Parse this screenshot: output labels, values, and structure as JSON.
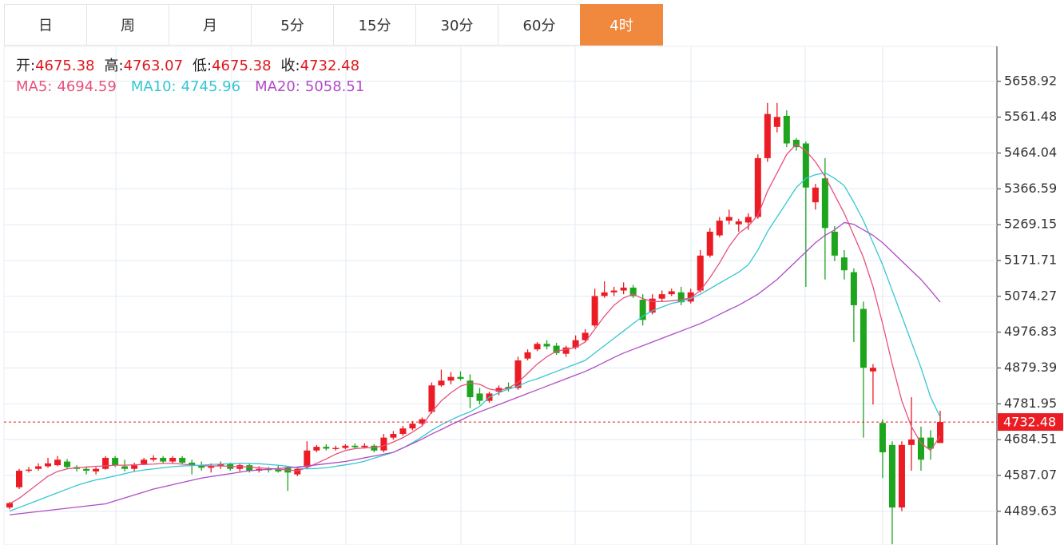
{
  "tabs": {
    "items": [
      "日",
      "周",
      "月",
      "5分",
      "15分",
      "30分",
      "60分",
      "4时"
    ],
    "active": 7
  },
  "chart_data": {
    "type": "candlestick",
    "info_labels": [
      "开:",
      "高:",
      "低:",
      "收:"
    ],
    "up_color": "#ec1c24",
    "down_color": "#1ea51e",
    "value_color": "#e0161e",
    "ylim": [
      4398,
      5754
    ],
    "yticks": [
      5658.92,
      5561.48,
      5464.04,
      5366.59,
      5269.15,
      5171.71,
      5074.27,
      4976.83,
      4879.39,
      4781.95,
      4684.51,
      4587.07,
      4489.63
    ],
    "open": [
      4500,
      4555,
      4600,
      4605,
      4612,
      4615,
      4625,
      4610,
      4605,
      4598,
      4605,
      4635,
      4612,
      4605,
      4618,
      4630,
      4635,
      4625,
      4635,
      4622,
      4615,
      4608,
      4612,
      4618,
      4605,
      4615,
      4600,
      4605,
      4603,
      4610,
      4590,
      4610,
      4655,
      4665,
      4660,
      4662,
      4668,
      4664,
      4668,
      4655,
      4690,
      4700,
      4715,
      4728,
      4760,
      4832,
      4845,
      4855,
      4845,
      4810,
      4790,
      4815,
      4828,
      4825,
      4905,
      4930,
      4945,
      4940,
      4918,
      4935,
      4955,
      4995,
      5075,
      5085,
      5090,
      5098,
      5065,
      5030,
      5068,
      5080,
      5085,
      5060,
      5090,
      5185,
      5240,
      5280,
      5270,
      5275,
      5290,
      5450,
      5535,
      5565,
      5500,
      5490,
      5330,
      5395,
      5250,
      5180,
      5140,
      5040,
      4870,
      4730,
      4670,
      4500,
      4670,
      4690,
      4690,
      4675.38
    ],
    "high": [
      4515,
      4605,
      4610,
      4620,
      4635,
      4640,
      4632,
      4615,
      4612,
      4610,
      4640,
      4640,
      4630,
      4622,
      4635,
      4642,
      4640,
      4640,
      4640,
      4630,
      4625,
      4620,
      4625,
      4622,
      4620,
      4620,
      4612,
      4610,
      4615,
      4612,
      4608,
      4680,
      4670,
      4672,
      4668,
      4672,
      4674,
      4675,
      4672,
      4700,
      4708,
      4722,
      4735,
      4745,
      4840,
      4875,
      4868,
      4870,
      4862,
      4825,
      4815,
      4832,
      4840,
      4910,
      4930,
      4950,
      4955,
      4948,
      4940,
      4968,
      4985,
      5095,
      5115,
      5100,
      5112,
      5105,
      5080,
      5080,
      5090,
      5095,
      5100,
      5095,
      5200,
      5260,
      5290,
      5310,
      5285,
      5300,
      5460,
      5600,
      5600,
      5580,
      5505,
      5495,
      5380,
      5450,
      5265,
      5200,
      5150,
      5060,
      4890,
      4740,
      4680,
      4680,
      4800,
      4720,
      4710,
      4763.07
    ],
    "low": [
      4495,
      4550,
      4595,
      4600,
      4608,
      4612,
      4605,
      4598,
      4590,
      4590,
      4603,
      4610,
      4598,
      4598,
      4615,
      4625,
      4620,
      4620,
      4618,
      4590,
      4600,
      4595,
      4605,
      4600,
      4598,
      4595,
      4595,
      4595,
      4595,
      4545,
      4585,
      4608,
      4650,
      4655,
      4655,
      4658,
      4660,
      4660,
      4650,
      4650,
      4685,
      4695,
      4710,
      4722,
      4755,
      4828,
      4835,
      4845,
      4770,
      4780,
      4785,
      4805,
      4815,
      4820,
      4900,
      4925,
      4930,
      4915,
      4910,
      4930,
      4950,
      4990,
      5070,
      5075,
      5080,
      5070,
      4995,
      5025,
      5060,
      5075,
      5050,
      5055,
      5085,
      5180,
      5235,
      5270,
      5250,
      5255,
      5285,
      5440,
      5520,
      5480,
      5470,
      5100,
      5310,
      5120,
      5170,
      5120,
      4950,
      4690,
      4780,
      4580,
      4400,
      4490,
      4600,
      4600,
      4630,
      4675.38
    ],
    "close": [
      4512,
      4600,
      4603,
      4612,
      4620,
      4630,
      4610,
      4605,
      4600,
      4605,
      4635,
      4615,
      4605,
      4615,
      4630,
      4635,
      4625,
      4635,
      4622,
      4615,
      4608,
      4612,
      4618,
      4605,
      4615,
      4600,
      4605,
      4603,
      4598,
      4595,
      4605,
      4655,
      4665,
      4660,
      4662,
      4668,
      4664,
      4668,
      4655,
      4690,
      4700,
      4715,
      4728,
      4740,
      4832,
      4845,
      4855,
      4850,
      4800,
      4790,
      4810,
      4825,
      4822,
      4900,
      4922,
      4945,
      4938,
      4920,
      4935,
      4955,
      4975,
      5075,
      5085,
      5090,
      5098,
      5075,
      5010,
      5068,
      5080,
      5088,
      5058,
      5085,
      5185,
      5250,
      5280,
      5290,
      5278,
      5290,
      5450,
      5570,
      5562,
      5490,
      5480,
      5370,
      5370,
      5260,
      5185,
      5145,
      5050,
      4880,
      4880,
      4650,
      4500,
      4670,
      4685,
      4630,
      4660,
      4732.48
    ],
    "series": [
      {
        "name": "MA5:",
        "color": "#e8507c",
        "values": [
          4510,
          4525,
          4545,
          4565,
          4585,
          4598,
          4605,
          4608,
          4610,
          4612,
          4613,
          4615,
          4615,
          4616,
          4617,
          4618,
          4620,
          4620,
          4618,
          4615,
          4614,
          4613,
          4613,
          4612,
          4611,
          4610,
          4608,
          4606,
          4604,
          4602,
          4600,
          4608,
          4620,
          4632,
          4645,
          4655,
          4660,
          4662,
          4663,
          4668,
          4678,
          4690,
          4705,
          4722,
          4760,
          4790,
          4812,
          4830,
          4838,
          4835,
          4822,
          4818,
          4825,
          4840,
          4865,
          4890,
          4910,
          4925,
          4930,
          4935,
          4950,
          4985,
          5020,
          5050,
          5070,
          5080,
          5068,
          5060,
          5060,
          5062,
          5065,
          5070,
          5090,
          5125,
          5165,
          5210,
          5245,
          5265,
          5295,
          5360,
          5410,
          5460,
          5488,
          5470,
          5440,
          5400,
          5350,
          5300,
          5240,
          5180,
          5100,
          5000,
          4890,
          4790,
          4720,
          4675,
          4655,
          4694.59
        ]
      },
      {
        "name": "MA10:",
        "color": "#36c6d2",
        "values": [
          4490,
          4500,
          4510,
          4520,
          4530,
          4540,
          4550,
          4560,
          4568,
          4575,
          4580,
          4586,
          4592,
          4598,
          4602,
          4605,
          4608,
          4611,
          4613,
          4614,
          4615,
          4617,
          4618,
          4619,
          4620,
          4620,
          4619,
          4617,
          4615,
          4612,
          4608,
          4605,
          4606,
          4608,
          4612,
          4616,
          4620,
          4626,
          4634,
          4642,
          4650,
          4662,
          4676,
          4692,
          4710,
          4725,
          4738,
          4750,
          4760,
          4775,
          4800,
          4812,
          4822,
          4830,
          4842,
          4850,
          4860,
          4870,
          4880,
          4890,
          4900,
          4920,
          4940,
          4960,
          4980,
          5000,
          5020,
          5035,
          5045,
          5055,
          5060,
          5068,
          5080,
          5095,
          5110,
          5125,
          5140,
          5160,
          5200,
          5250,
          5290,
          5330,
          5370,
          5395,
          5405,
          5410,
          5395,
          5375,
          5330,
          5280,
          5220,
          5160,
          5090,
          5020,
          4950,
          4880,
          4800,
          4745.96
        ]
      },
      {
        "name": "MA20:",
        "color": "#b04cc4",
        "values": [
          4480,
          4483,
          4486,
          4489,
          4492,
          4495,
          4498,
          4501,
          4504,
          4507,
          4510,
          4518,
          4526,
          4534,
          4542,
          4550,
          4556,
          4562,
          4568,
          4574,
          4580,
          4584,
          4588,
          4592,
          4596,
          4600,
          4602,
          4604,
          4606,
          4608,
          4610,
          4613,
          4616,
          4619,
          4622,
          4625,
          4630,
          4635,
          4640,
          4645,
          4650,
          4662,
          4674,
          4686,
          4700,
          4712,
          4725,
          4737,
          4750,
          4760,
          4770,
          4780,
          4790,
          4800,
          4810,
          4820,
          4830,
          4840,
          4850,
          4860,
          4870,
          4882,
          4895,
          4908,
          4920,
          4930,
          4940,
          4950,
          4960,
          4970,
          4980,
          4990,
          5000,
          5012,
          5025,
          5038,
          5050,
          5065,
          5080,
          5100,
          5120,
          5145,
          5170,
          5195,
          5220,
          5240,
          5255,
          5275,
          5270,
          5255,
          5240,
          5220,
          5195,
          5170,
          5145,
          5120,
          5090,
          5058.51
        ]
      }
    ]
  }
}
